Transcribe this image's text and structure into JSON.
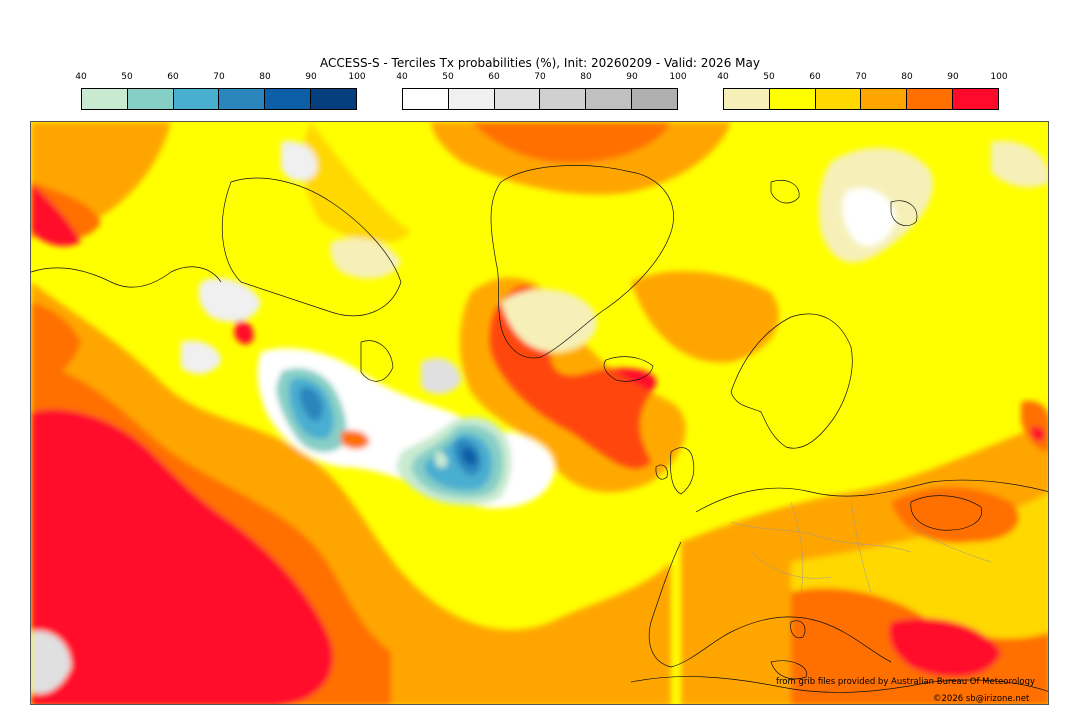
{
  "title": "ACCESS-S - Terciles Tx probabilities (%), Init: 20260209 - Valid: 2026 May",
  "colorbars": [
    {
      "name": "below-normal",
      "ticks": [
        "40",
        "50",
        "60",
        "70",
        "80",
        "90",
        "100"
      ],
      "colors": [
        "#c8ead0",
        "#86cfc6",
        "#4aaed0",
        "#2a86bd",
        "#0c5ea6",
        "#063f7e"
      ]
    },
    {
      "name": "near-normal",
      "ticks": [
        "40",
        "50",
        "60",
        "70",
        "80",
        "90",
        "100"
      ],
      "colors": [
        "#ffffff",
        "#f0f0f0",
        "#e0e0e0",
        "#d0d0d0",
        "#c0c0c0",
        "#b0b0b0"
      ]
    },
    {
      "name": "above-normal",
      "ticks": [
        "40",
        "50",
        "60",
        "70",
        "80",
        "90",
        "100"
      ],
      "colors": [
        "#f6f0b8",
        "#ffff00",
        "#ffd800",
        "#ffa500",
        "#ff7000",
        "#ff0a2a"
      ]
    }
  ],
  "credit_source": "from grib files provided by Australian Bureau Of Meteorology",
  "credit_copyright": "©2026 sb@irizone.net"
}
